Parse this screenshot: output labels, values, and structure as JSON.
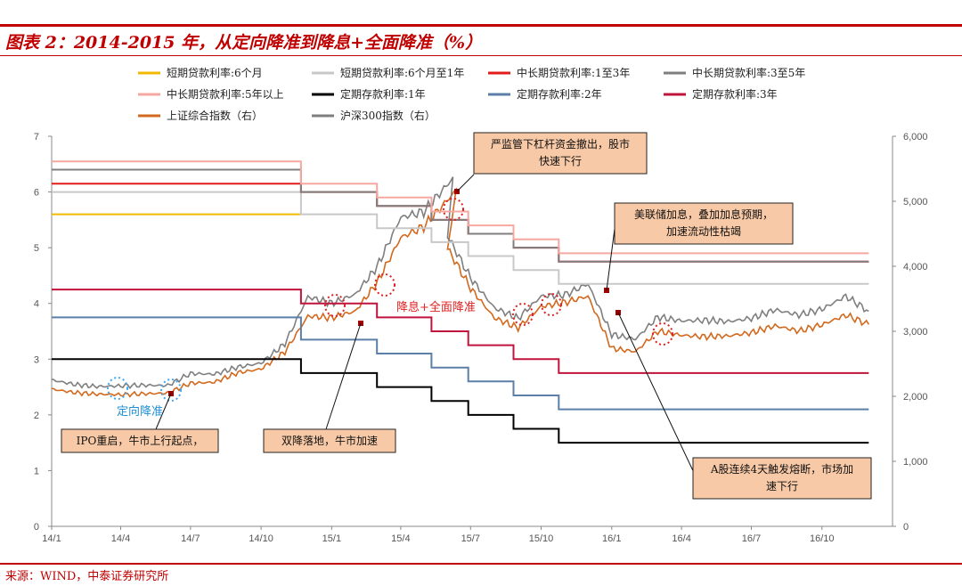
{
  "header": {
    "title": "图表 2：2014-2015 年，从定向降准到降息+全面降准（%）",
    "source": "来源：WIND，中泰证券研究所"
  },
  "chart_data": {
    "type": "line",
    "title": "图表 2：2014-2015 年，从定向降准到降息+全面降准（%）",
    "x_ticks": [
      "14/1",
      "14/4",
      "14/7",
      "14/10",
      "15/1",
      "15/4",
      "15/7",
      "15/10",
      "16/1",
      "16/4",
      "16/7",
      "16/10"
    ],
    "x_range": [
      "2014-01",
      "2016-12"
    ],
    "left_axis": {
      "ticks": [
        "0",
        "1",
        "2",
        "3",
        "4",
        "5",
        "6",
        "7"
      ],
      "range": [
        0,
        7
      ]
    },
    "right_axis": {
      "ticks": [
        "0",
        "1,000",
        "2,000",
        "3,000",
        "4,000",
        "5,000",
        "6,000"
      ],
      "range": [
        0,
        6000
      ]
    },
    "grid": false,
    "legend_position": "top",
    "rate_series": [
      {
        "name": "短期贷款利率:6个月",
        "color": "#f5b800",
        "steps": [
          [
            "2014-01",
            5.6
          ],
          [
            "2014-11-22",
            5.6
          ]
        ]
      },
      {
        "name": "短期贷款利率:6个月至1年",
        "color": "#c8c8c8",
        "steps": [
          [
            "2014-01",
            6.0
          ],
          [
            "2014-11-22",
            5.6
          ],
          [
            "2015-03-01",
            5.35
          ],
          [
            "2015-05-11",
            5.1
          ],
          [
            "2015-06-28",
            4.85
          ],
          [
            "2015-08-26",
            4.6
          ],
          [
            "2015-10-24",
            4.35
          ],
          [
            "2016-12",
            4.35
          ]
        ]
      },
      {
        "name": "中长期贷款利率:1至3年",
        "color": "#e21b1b",
        "steps": [
          [
            "2014-01",
            6.15
          ],
          [
            "2014-11-22",
            6.0
          ],
          [
            "2015-03-01",
            5.75
          ],
          [
            "2015-05-11",
            5.5
          ],
          [
            "2015-06-28",
            5.25
          ],
          [
            "2015-08-26",
            5.0
          ],
          [
            "2015-10-24",
            4.75
          ],
          [
            "2016-12",
            4.75
          ]
        ]
      },
      {
        "name": "中长期贷款利率:3至5年",
        "color": "#7f7f7f",
        "steps": [
          [
            "2014-01",
            6.4
          ],
          [
            "2014-11-22",
            6.0
          ],
          [
            "2015-03-01",
            5.75
          ],
          [
            "2015-05-11",
            5.5
          ],
          [
            "2015-06-28",
            5.25
          ],
          [
            "2015-08-26",
            5.0
          ],
          [
            "2015-10-24",
            4.75
          ],
          [
            "2016-12",
            4.75
          ]
        ]
      },
      {
        "name": "中长期贷款利率:5年以上",
        "color": "#f6a8a0",
        "steps": [
          [
            "2014-01",
            6.55
          ],
          [
            "2014-11-22",
            6.15
          ],
          [
            "2015-03-01",
            5.9
          ],
          [
            "2015-05-11",
            5.65
          ],
          [
            "2015-06-28",
            5.4
          ],
          [
            "2015-08-26",
            5.15
          ],
          [
            "2015-10-24",
            4.9
          ],
          [
            "2016-12",
            4.9
          ]
        ]
      },
      {
        "name": "定期存款利率:1年",
        "color": "#000000",
        "steps": [
          [
            "2014-01",
            3.0
          ],
          [
            "2014-11-22",
            2.75
          ],
          [
            "2015-03-01",
            2.5
          ],
          [
            "2015-05-11",
            2.25
          ],
          [
            "2015-06-28",
            2.0
          ],
          [
            "2015-08-26",
            1.75
          ],
          [
            "2015-10-24",
            1.5
          ],
          [
            "2016-12",
            1.5
          ]
        ]
      },
      {
        "name": "定期存款利率:2年",
        "color": "#5b7fa6",
        "steps": [
          [
            "2014-01",
            3.75
          ],
          [
            "2014-11-22",
            3.35
          ],
          [
            "2015-03-01",
            3.1
          ],
          [
            "2015-05-11",
            2.85
          ],
          [
            "2015-06-28",
            2.6
          ],
          [
            "2015-08-26",
            2.35
          ],
          [
            "2015-10-24",
            2.1
          ],
          [
            "2016-12",
            2.1
          ]
        ]
      },
      {
        "name": "定期存款利率:3年",
        "color": "#c0143c",
        "steps": [
          [
            "2014-01",
            4.25
          ],
          [
            "2014-11-22",
            4.0
          ],
          [
            "2015-03-01",
            3.75
          ],
          [
            "2015-05-11",
            3.5
          ],
          [
            "2015-06-28",
            3.25
          ],
          [
            "2015-08-26",
            3.0
          ],
          [
            "2015-10-24",
            2.75
          ],
          [
            "2016-12",
            2.75
          ]
        ]
      }
    ],
    "index_series": [
      {
        "name": "上证综合指数（右）",
        "color": "#d2691e",
        "points": [
          [
            "2014-01",
            2110
          ],
          [
            "2014-02",
            2056
          ],
          [
            "2014-03",
            2033
          ],
          [
            "2014-04",
            2026
          ],
          [
            "2014-05",
            2039
          ],
          [
            "2014-06",
            2048
          ],
          [
            "2014-07",
            2201
          ],
          [
            "2014-08",
            2217
          ],
          [
            "2014-09",
            2364
          ],
          [
            "2014-10",
            2420
          ],
          [
            "2014-11",
            2683
          ],
          [
            "2014-12",
            3234
          ],
          [
            "2015-01",
            3210
          ],
          [
            "2015-02",
            3310
          ],
          [
            "2015-03",
            3748
          ],
          [
            "2015-04",
            4441
          ],
          [
            "2015-05",
            4611
          ],
          [
            "2015-06-12",
            5166
          ],
          [
            "2015-06",
            4277
          ],
          [
            "2015-07",
            3663
          ],
          [
            "2015-08",
            3205
          ],
          [
            "2015-09",
            3053
          ],
          [
            "2015-10",
            3382
          ],
          [
            "2015-11",
            3445
          ],
          [
            "2015-12",
            3539
          ],
          [
            "2016-01",
            2737
          ],
          [
            "2016-02",
            2687
          ],
          [
            "2016-03",
            3003
          ],
          [
            "2016-04",
            2938
          ],
          [
            "2016-05",
            2917
          ],
          [
            "2016-06",
            2929
          ],
          [
            "2016-07",
            2979
          ],
          [
            "2016-08",
            3085
          ],
          [
            "2016-09",
            3004
          ],
          [
            "2016-10",
            3100
          ],
          [
            "2016-11",
            3250
          ],
          [
            "2016-12",
            3104
          ]
        ]
      },
      {
        "name": "沪深300指数（右）",
        "color": "#7f7f7f",
        "points": [
          [
            "2014-01",
            2250
          ],
          [
            "2014-02",
            2180
          ],
          [
            "2014-03",
            2150
          ],
          [
            "2014-04",
            2160
          ],
          [
            "2014-05",
            2170
          ],
          [
            "2014-06",
            2165
          ],
          [
            "2014-07",
            2350
          ],
          [
            "2014-08",
            2340
          ],
          [
            "2014-09",
            2450
          ],
          [
            "2014-10",
            2510
          ],
          [
            "2014-11",
            2810
          ],
          [
            "2014-12",
            3530
          ],
          [
            "2015-01",
            3430
          ],
          [
            "2015-02",
            3570
          ],
          [
            "2015-03",
            3990
          ],
          [
            "2015-04",
            4750
          ],
          [
            "2015-05",
            4840
          ],
          [
            "2015-06-08",
            5354
          ],
          [
            "2015-06",
            4470
          ],
          [
            "2015-07",
            3820
          ],
          [
            "2015-08",
            3360
          ],
          [
            "2015-09",
            3200
          ],
          [
            "2015-10",
            3540
          ],
          [
            "2015-11",
            3560
          ],
          [
            "2015-12",
            3730
          ],
          [
            "2016-01",
            2950
          ],
          [
            "2016-02",
            2880
          ],
          [
            "2016-03",
            3220
          ],
          [
            "2016-04",
            3160
          ],
          [
            "2016-05",
            3170
          ],
          [
            "2016-06",
            3150
          ],
          [
            "2016-07",
            3200
          ],
          [
            "2016-08",
            3330
          ],
          [
            "2016-09",
            3250
          ],
          [
            "2016-10",
            3340
          ],
          [
            "2016-11",
            3540
          ],
          [
            "2016-12",
            3310
          ]
        ]
      }
    ],
    "annotations": [
      {
        "text": "定向降准",
        "type": "label"
      },
      {
        "text": "降息+全面降准",
        "type": "label"
      },
      {
        "lines": [
          "严监管下杠杆资金撤出，股市",
          "快速下行"
        ],
        "type": "callout"
      },
      {
        "lines": [
          "美联储加息，叠加加息预期，",
          "加速流动性枯竭"
        ],
        "type": "callout"
      },
      {
        "lines": [
          "IPO重启，牛市上行起点，"
        ],
        "type": "callout"
      },
      {
        "lines": [
          "双降落地，牛市加速"
        ],
        "type": "callout"
      },
      {
        "lines": [
          "A股连续4天触发熔断，市场加",
          "速下行"
        ],
        "type": "callout"
      }
    ]
  }
}
